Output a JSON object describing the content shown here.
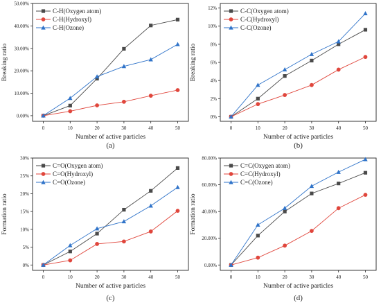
{
  "chart_data": [
    {
      "type": "line",
      "panel_label": "(a)",
      "xlabel": "Number of active particles",
      "ylabel": "Breaking ratio",
      "x": [
        0,
        10,
        20,
        30,
        40,
        50
      ],
      "x_ticks": [
        "0",
        "10",
        "20",
        "30",
        "40",
        "50"
      ],
      "xlim": [
        -4,
        54
      ],
      "ylim": [
        -2.5,
        50
      ],
      "y_ticks": [
        0,
        10,
        20,
        30,
        40,
        50
      ],
      "y_tick_labels": [
        "0.00%",
        "10.00%",
        "20.00%",
        "30.00%",
        "40.00%",
        "50.00%"
      ],
      "legend_position": "top-left",
      "grid": false,
      "series": [
        {
          "name": "C-H(Oxygen atom)",
          "color": "#4a4a4a",
          "marker": "square",
          "values": [
            0,
            4.5,
            16.5,
            29.8,
            40.2,
            42.8
          ]
        },
        {
          "name": "C-H(Hydroxyl)",
          "color": "#e0463c",
          "marker": "circle",
          "values": [
            0,
            2.0,
            4.6,
            6.2,
            8.9,
            11.4
          ]
        },
        {
          "name": "C-H(Ozone)",
          "color": "#2f73c9",
          "marker": "triangle",
          "values": [
            0,
            7.8,
            17.4,
            22.0,
            25.0,
            31.8
          ]
        }
      ]
    },
    {
      "type": "line",
      "panel_label": "(b)",
      "xlabel": "Number of active particles",
      "ylabel": "Breaking ratio",
      "x": [
        0,
        10,
        20,
        30,
        40,
        50
      ],
      "x_ticks": [
        "0",
        "10",
        "20",
        "30",
        "40",
        "50"
      ],
      "xlim": [
        -4,
        54
      ],
      "ylim": [
        -0.5,
        12.5
      ],
      "y_ticks": [
        0,
        2,
        4,
        6,
        8,
        10,
        12
      ],
      "y_tick_labels": [
        "0%",
        "2%",
        "4%",
        "6%",
        "8%",
        "10%",
        "12%"
      ],
      "legend_position": "top-left",
      "grid": false,
      "series": [
        {
          "name": "C-C(Oxygen atom)",
          "color": "#4a4a4a",
          "marker": "square",
          "values": [
            0,
            2.0,
            4.5,
            6.2,
            8.0,
            9.6
          ]
        },
        {
          "name": "C-C(Hydroxyl)",
          "color": "#e0463c",
          "marker": "circle",
          "values": [
            0,
            1.4,
            2.4,
            3.5,
            5.2,
            6.6
          ]
        },
        {
          "name": "C-C(Ozone)",
          "color": "#2f73c9",
          "marker": "triangle",
          "values": [
            0,
            3.5,
            5.2,
            6.9,
            8.3,
            11.4
          ]
        }
      ]
    },
    {
      "type": "line",
      "panel_label": "(c)",
      "xlabel": "Number of active particles",
      "ylabel": "Formation ratio",
      "x": [
        0,
        10,
        20,
        30,
        40,
        50
      ],
      "x_ticks": [
        "0",
        "10",
        "20",
        "30",
        "40",
        "50"
      ],
      "xlim": [
        -4,
        54
      ],
      "ylim": [
        -1.5,
        30
      ],
      "y_ticks": [
        0,
        5,
        10,
        15,
        20,
        25,
        30
      ],
      "y_tick_labels": [
        "0%",
        "5%",
        "10%",
        "15%",
        "20%",
        "25%",
        "30%"
      ],
      "legend_position": "top-left",
      "grid": false,
      "series": [
        {
          "name": "C=O(Oxygen atom)",
          "color": "#4a4a4a",
          "marker": "square",
          "values": [
            0,
            3.8,
            8.8,
            15.5,
            20.8,
            27.2
          ]
        },
        {
          "name": "C=O(Hydroxyl)",
          "color": "#e0463c",
          "marker": "circle",
          "values": [
            0,
            1.3,
            5.9,
            6.6,
            9.4,
            15.2
          ]
        },
        {
          "name": "C=O(Ozone)",
          "color": "#2f73c9",
          "marker": "triangle",
          "values": [
            0,
            5.5,
            10.2,
            12.2,
            16.6,
            21.8
          ]
        }
      ]
    },
    {
      "type": "line",
      "panel_label": "(d)",
      "xlabel": "Number of active particles",
      "ylabel": "Formation ratio",
      "x": [
        0,
        10,
        20,
        30,
        40,
        50
      ],
      "x_ticks": [
        "0",
        "10",
        "20",
        "30",
        "40",
        "50"
      ],
      "xlim": [
        -4,
        54
      ],
      "ylim": [
        -4,
        80
      ],
      "y_ticks": [
        0,
        20,
        40,
        60,
        80
      ],
      "y_tick_labels": [
        "0.00%",
        "20.00%",
        "40.00%",
        "60.00%",
        "80.00%"
      ],
      "legend_position": "top-left",
      "grid": false,
      "series": [
        {
          "name": "C=C(Oxygen atom)",
          "color": "#4a4a4a",
          "marker": "square",
          "values": [
            0,
            22.0,
            40.0,
            53.5,
            61.0,
            69.0
          ]
        },
        {
          "name": "C=C(Hydroxyl)",
          "color": "#e0463c",
          "marker": "circle",
          "values": [
            0,
            5.5,
            14.5,
            25.5,
            42.5,
            52.5
          ]
        },
        {
          "name": "C=C(Ozone)",
          "color": "#2f73c9",
          "marker": "triangle",
          "values": [
            0,
            30.0,
            42.5,
            59.0,
            69.5,
            79.0
          ]
        }
      ]
    }
  ]
}
